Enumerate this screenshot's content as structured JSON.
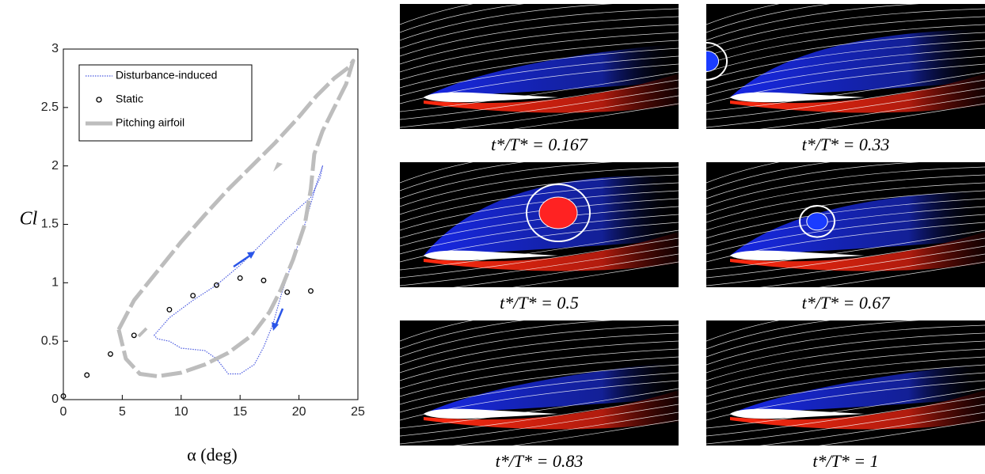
{
  "chart_data": {
    "type": "line",
    "xlabel": "α (deg)",
    "ylabel": "Cl",
    "xlim": [
      0,
      25
    ],
    "xticks": [
      0,
      5,
      10,
      15,
      20,
      25
    ],
    "ylim": [
      0,
      3
    ],
    "yticks": [
      0,
      0.5,
      1,
      1.5,
      2,
      2.5,
      3
    ],
    "series": [
      {
        "name": "Disturbance-induced",
        "color": "#4a5ae0",
        "style": "dotted",
        "x": [
          7.7,
          9,
          11,
          13,
          15,
          17,
          19,
          21,
          21.8,
          22,
          21.5,
          20.5,
          19.5,
          18.5,
          17.8,
          17,
          16.2,
          15,
          14,
          13,
          12,
          11,
          10,
          9,
          8,
          7.7
        ],
        "values": [
          0.55,
          0.7,
          0.85,
          0.98,
          1.15,
          1.35,
          1.55,
          1.73,
          1.9,
          2.0,
          1.85,
          1.5,
          1.2,
          0.9,
          0.65,
          0.45,
          0.3,
          0.22,
          0.22,
          0.35,
          0.42,
          0.43,
          0.44,
          0.5,
          0.52,
          0.55
        ]
      },
      {
        "name": "Static",
        "color": "#000000",
        "style": "markers",
        "x": [
          0,
          2,
          4,
          6,
          9,
          11,
          13,
          15,
          17,
          19,
          21
        ],
        "values": [
          0.03,
          0.21,
          0.39,
          0.55,
          0.77,
          0.89,
          0.98,
          1.04,
          1.02,
          0.92,
          0.93
        ]
      },
      {
        "name": "Pitching airfoil",
        "color": "#bdbdbd",
        "style": "dashed",
        "x": [
          4.7,
          6,
          8,
          10,
          12,
          14,
          16,
          18,
          20,
          21.5,
          23,
          24.3,
          24.6,
          24,
          23,
          22,
          21.3,
          21,
          20.5,
          19.5,
          18.5,
          17.5,
          16,
          14,
          12,
          10,
          8,
          6.5,
          5.3,
          4.7
        ],
        "values": [
          0.6,
          0.85,
          1.1,
          1.35,
          1.58,
          1.8,
          2.0,
          2.2,
          2.42,
          2.6,
          2.75,
          2.85,
          2.9,
          2.7,
          2.5,
          2.3,
          2.1,
          1.8,
          1.5,
          1.2,
          0.95,
          0.75,
          0.55,
          0.4,
          0.3,
          0.23,
          0.2,
          0.22,
          0.35,
          0.6
        ]
      }
    ]
  },
  "panels": [
    {
      "caption": "t*/T* = 0.167"
    },
    {
      "caption": "t*/T* = 0.33"
    },
    {
      "caption": "t*/T* = 0.5"
    },
    {
      "caption": "t*/T* = 0.67"
    },
    {
      "caption": "t*/T* = 0.83"
    },
    {
      "caption": "t*/T* = 1"
    }
  ]
}
